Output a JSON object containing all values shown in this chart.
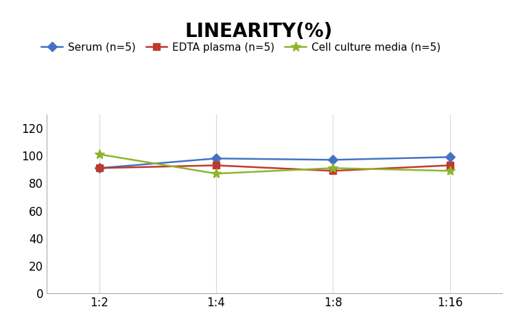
{
  "title": "LINEARITY(%)",
  "x_labels": [
    "1:2",
    "1:4",
    "1:8",
    "1:16"
  ],
  "x_positions": [
    0,
    1,
    2,
    3
  ],
  "series": [
    {
      "name": "Serum (n=5)",
      "values": [
        91,
        98,
        97,
        99
      ],
      "color": "#4472C4",
      "marker": "D",
      "markersize": 7,
      "linewidth": 1.8
    },
    {
      "name": "EDTA plasma (n=5)",
      "values": [
        91,
        93,
        89,
        93
      ],
      "color": "#C0392B",
      "marker": "s",
      "markersize": 7,
      "linewidth": 1.8
    },
    {
      "name": "Cell culture media (n=5)",
      "values": [
        101,
        87,
        91,
        89
      ],
      "color": "#8DB52A",
      "marker": "*",
      "markersize": 10,
      "linewidth": 1.8
    }
  ],
  "ylim": [
    0,
    130
  ],
  "yticks": [
    0,
    20,
    40,
    60,
    80,
    100,
    120
  ],
  "title_fontsize": 20,
  "legend_fontsize": 11,
  "tick_fontsize": 12,
  "background_color": "#ffffff",
  "grid_color": "#d8d8d8"
}
